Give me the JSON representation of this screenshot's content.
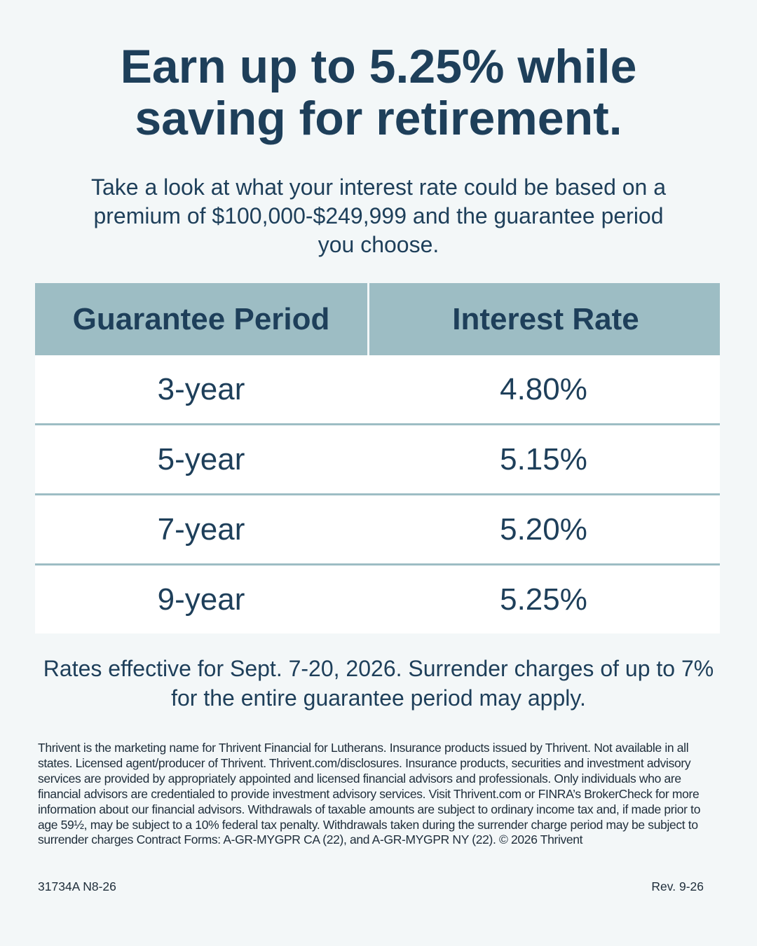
{
  "header": {
    "title": "Earn up to 5.25% while saving for retirement.",
    "subtitle": "Take a look at what your interest rate could be based on a premium of $100,000-$249,999 and the guarantee period you choose."
  },
  "table": {
    "columns": [
      "Guarantee Period",
      "Interest Rate"
    ],
    "rows": [
      [
        "3-year",
        "4.80%"
      ],
      [
        "5-year",
        "5.15%"
      ],
      [
        "7-year",
        "5.20%"
      ],
      [
        "9-year",
        "5.25%"
      ]
    ]
  },
  "note": "Rates effective for Sept. 7-20, 2026. Surrender charges of up to 7% for the entire guarantee period may apply.",
  "disclaimer": "Thrivent is the marketing name for Thrivent Financial for Lutherans. Insurance products issued by Thrivent. Not available in all states. Licensed agent/producer of Thrivent. Thrivent.com/disclosures. Insurance products, securities and investment advisory services are provided by appropriately appointed and licensed financial advisors and professionals. Only individuals who are financial advisors are credentialed to provide investment advisory services. Visit Thrivent.com or FINRA’s BrokerCheck for more information about our financial advisors. Withdrawals of taxable amounts are subject to ordinary income tax and, if made prior to age 59½, may be subject to a 10% federal tax penalty. Withdrawals taken during the surrender charge period may be subject to surrender charges Contract Forms: A-GR-MYGPR CA (22), and A-GR-MYGPR NY (22). © 2026 Thrivent",
  "footer": {
    "code": "31734A N8-26",
    "revision": "Rev. 9-26"
  }
}
